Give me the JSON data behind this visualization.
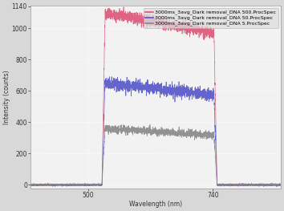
{
  "title": "",
  "xlabel": "Wavelength (nm)",
  "ylabel": "Intensity (counts)",
  "xlim": [
    390,
    870
  ],
  "ylim": [
    -25,
    1145
  ],
  "yticks": [
    0,
    200,
    400,
    600,
    800,
    1000,
    1140
  ],
  "xticks": [
    500,
    740
  ],
  "bg_color": "#d8d8d8",
  "plot_bg_color": "#f2f2f2",
  "grid_color": "#ffffff",
  "series": [
    {
      "label": "3000ms_3avg_Dark removal_DNA 500.ProcSpec",
      "color": "#dd5577",
      "peak_start": 530,
      "peak_end": 745,
      "peak_height": 1100,
      "noise_amplitude": 18,
      "baseline_noise": 3,
      "baseline": 0
    },
    {
      "label": "3000ms_3avg_Dark removal_DNA 50.ProcSpec",
      "color": "#5555cc",
      "peak_start": 530,
      "peak_end": 745,
      "peak_height": 650,
      "noise_amplitude": 18,
      "baseline_noise": 3,
      "baseline": 0
    },
    {
      "label": "3000ms_3avg_Dark removal_DNA 5.ProcSpec",
      "color": "#888888",
      "peak_start": 530,
      "peak_end": 745,
      "peak_height": 360,
      "noise_amplitude": 12,
      "baseline_noise": 3,
      "baseline": 0
    }
  ],
  "legend_fontsize": 4.5,
  "tick_fontsize": 5.5,
  "label_fontsize": 5.5
}
